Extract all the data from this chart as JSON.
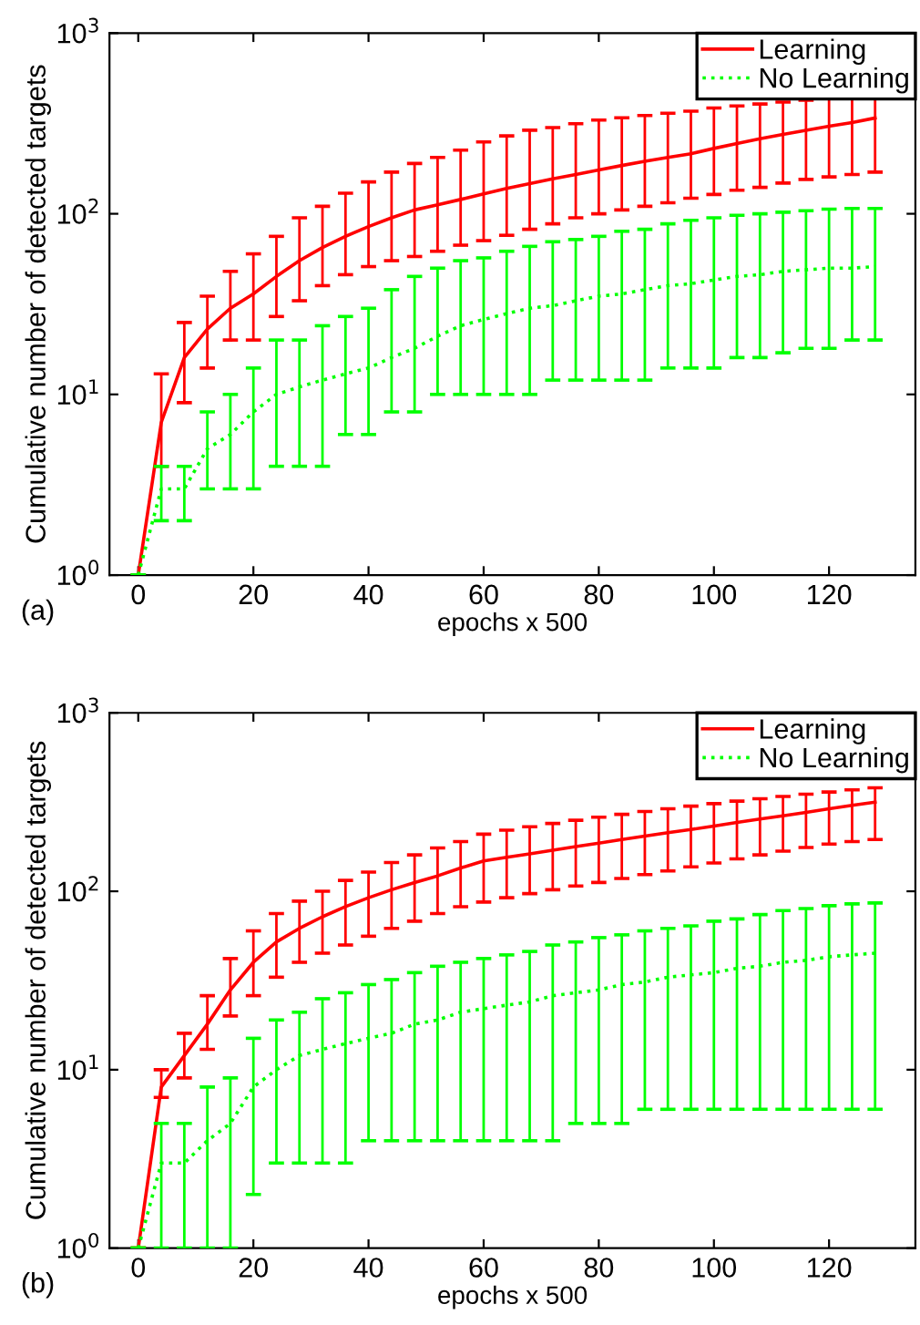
{
  "chart_data": [
    {
      "type": "line",
      "ylabel": "Cumulative number of detected targets",
      "xlabel": "epochs x 500",
      "annotations": [
        "(a)"
      ],
      "log": "y",
      "xlim": [
        -5,
        135
      ],
      "xticks": [
        0,
        20,
        40,
        60,
        80,
        100,
        120
      ],
      "ylim": [
        1,
        1000
      ],
      "yticks": [
        {
          "value": 1,
          "label": "10$^{0}$"
        },
        {
          "value": 10,
          "label": "10$^{1}$"
        },
        {
          "value": 100,
          "label": "10$^{2}$"
        },
        {
          "value": 1000,
          "label": "10$^{3}$"
        }
      ],
      "legend": "top right",
      "grid": false,
      "x": [
        0,
        4,
        8,
        12,
        16,
        20,
        24,
        28,
        32,
        36,
        40,
        44,
        48,
        52,
        56,
        60,
        64,
        68,
        72,
        76,
        80,
        84,
        88,
        92,
        96,
        100,
        104,
        108,
        112,
        116,
        120,
        124,
        128
      ],
      "series": [
        {
          "name": "Learning",
          "color": "#ff0000",
          "line_style": "solid",
          "values": [
            1,
            7,
            16,
            23,
            30,
            36,
            45,
            55,
            65,
            75,
            85,
            95,
            105,
            112,
            120,
            129,
            138,
            147,
            156,
            165,
            175,
            185,
            195,
            205,
            215,
            230,
            245,
            260,
            275,
            290,
            305,
            320,
            339
          ],
          "errors": [
            [
              1,
              1
            ],
            [
              4,
              13
            ],
            [
              9,
              25
            ],
            [
              14,
              35
            ],
            [
              20,
              48
            ],
            [
              20,
              60
            ],
            [
              27,
              75
            ],
            [
              33,
              95
            ],
            [
              40,
              110
            ],
            [
              46,
              130
            ],
            [
              51,
              150
            ],
            [
              55,
              170
            ],
            [
              58,
              190
            ],
            [
              62,
              205
            ],
            [
              67,
              225
            ],
            [
              71,
              250
            ],
            [
              76,
              270
            ],
            [
              82,
              290
            ],
            [
              88,
              300
            ],
            [
              95,
              315
            ],
            [
              100,
              330
            ],
            [
              105,
              340
            ],
            [
              110,
              350
            ],
            [
              115,
              360
            ],
            [
              122,
              370
            ],
            [
              128,
              385
            ],
            [
              135,
              395
            ],
            [
              140,
              405
            ],
            [
              148,
              415
            ],
            [
              155,
              425
            ],
            [
              160,
              435
            ],
            [
              165,
              445
            ],
            [
              170,
              447
            ]
          ]
        },
        {
          "name": "No Learning",
          "color": "#00ff00",
          "line_style": "dotted",
          "values": [
            1,
            3,
            3,
            5,
            6,
            8,
            10,
            11,
            12,
            13,
            14,
            16,
            18,
            21,
            24,
            26,
            28,
            30,
            31,
            33,
            35,
            36,
            38,
            40,
            41,
            43,
            45,
            46,
            48,
            49,
            50,
            50,
            51
          ],
          "errors": [
            [
              1,
              1
            ],
            [
              2,
              4
            ],
            [
              2,
              4
            ],
            [
              3,
              8
            ],
            [
              3,
              10
            ],
            [
              3,
              14
            ],
            [
              4,
              20
            ],
            [
              4,
              20
            ],
            [
              4,
              24
            ],
            [
              6,
              27
            ],
            [
              6,
              30
            ],
            [
              8,
              38
            ],
            [
              8,
              45
            ],
            [
              10,
              50
            ],
            [
              10,
              55
            ],
            [
              10,
              57
            ],
            [
              10,
              62
            ],
            [
              10,
              66
            ],
            [
              12,
              70
            ],
            [
              12,
              72
            ],
            [
              12,
              75
            ],
            [
              12,
              80
            ],
            [
              12,
              82
            ],
            [
              14,
              88
            ],
            [
              14,
              92
            ],
            [
              14,
              95
            ],
            [
              16,
              98
            ],
            [
              16,
              100
            ],
            [
              17,
              102
            ],
            [
              18,
              104
            ],
            [
              18,
              106
            ],
            [
              20,
              107
            ],
            [
              20,
              107
            ]
          ]
        }
      ]
    },
    {
      "type": "line",
      "ylabel": "Cumulative number of detected targets",
      "xlabel": "epochs x 500",
      "annotations": [
        "(b)"
      ],
      "log": "y",
      "xlim": [
        -5,
        135
      ],
      "xticks": [
        0,
        20,
        40,
        60,
        80,
        100,
        120
      ],
      "ylim": [
        1,
        1000
      ],
      "yticks": [
        {
          "value": 1,
          "label": "10$^{0}$"
        },
        {
          "value": 10,
          "label": "10$^{1}$"
        },
        {
          "value": 100,
          "label": "10$^{2}$"
        },
        {
          "value": 1000,
          "label": "10$^{3}$"
        }
      ],
      "legend": "top right",
      "grid": false,
      "x": [
        0,
        4,
        8,
        12,
        16,
        20,
        24,
        28,
        32,
        36,
        40,
        44,
        48,
        52,
        56,
        60,
        64,
        68,
        72,
        76,
        80,
        84,
        88,
        92,
        96,
        100,
        104,
        108,
        112,
        116,
        120,
        124,
        128
      ],
      "series": [
        {
          "name": "Learning",
          "color": "#ff0000",
          "line_style": "solid",
          "values": [
            1,
            8,
            12,
            18,
            28,
            40,
            52,
            62,
            72,
            82,
            92,
            102,
            112,
            122,
            135,
            148,
            155,
            162,
            170,
            178,
            186,
            195,
            204,
            213,
            222,
            232,
            243,
            254,
            265,
            277,
            290,
            303,
            316
          ],
          "errors": [
            [
              1,
              1
            ],
            [
              7,
              10
            ],
            [
              9,
              16
            ],
            [
              13,
              26
            ],
            [
              20,
              42
            ],
            [
              26,
              60
            ],
            [
              33,
              75
            ],
            [
              40,
              88
            ],
            [
              45,
              100
            ],
            [
              50,
              115
            ],
            [
              56,
              128
            ],
            [
              62,
              145
            ],
            [
              68,
              160
            ],
            [
              75,
              175
            ],
            [
              82,
              190
            ],
            [
              87,
              209
            ],
            [
              92,
              220
            ],
            [
              97,
              230
            ],
            [
              102,
              240
            ],
            [
              107,
              250
            ],
            [
              112,
              260
            ],
            [
              118,
              270
            ],
            [
              124,
              280
            ],
            [
              130,
              290
            ],
            [
              137,
              300
            ],
            [
              144,
              310
            ],
            [
              152,
              320
            ],
            [
              160,
              330
            ],
            [
              168,
              340
            ],
            [
              176,
              350
            ],
            [
              184,
              360
            ],
            [
              190,
              370
            ],
            [
              195,
              380
            ]
          ]
        },
        {
          "name": "No Learning",
          "color": "#00ff00",
          "line_style": "dotted",
          "values": [
            1,
            3,
            3,
            4,
            5,
            8,
            10,
            12,
            13,
            14,
            15,
            16,
            18,
            19,
            21,
            22,
            23,
            24,
            26,
            27,
            28,
            30,
            31,
            33,
            34,
            35,
            37,
            38,
            40,
            41,
            43,
            44,
            45
          ],
          "errors": [
            [
              1,
              1
            ],
            [
              1,
              5
            ],
            [
              1,
              5
            ],
            [
              1,
              8
            ],
            [
              1,
              9
            ],
            [
              2,
              15
            ],
            [
              3,
              19
            ],
            [
              3,
              21
            ],
            [
              3,
              25
            ],
            [
              3,
              27
            ],
            [
              4,
              30
            ],
            [
              4,
              32
            ],
            [
              4,
              35
            ],
            [
              4,
              38
            ],
            [
              4,
              40
            ],
            [
              4,
              42
            ],
            [
              4,
              44
            ],
            [
              4,
              46
            ],
            [
              4,
              50
            ],
            [
              5,
              52
            ],
            [
              5,
              55
            ],
            [
              5,
              57
            ],
            [
              6,
              60
            ],
            [
              6,
              62
            ],
            [
              6,
              64
            ],
            [
              6,
              68
            ],
            [
              6,
              70
            ],
            [
              6,
              74
            ],
            [
              6,
              78
            ],
            [
              6,
              80
            ],
            [
              6,
              83
            ],
            [
              6,
              85
            ],
            [
              6,
              86
            ]
          ]
        }
      ]
    }
  ]
}
